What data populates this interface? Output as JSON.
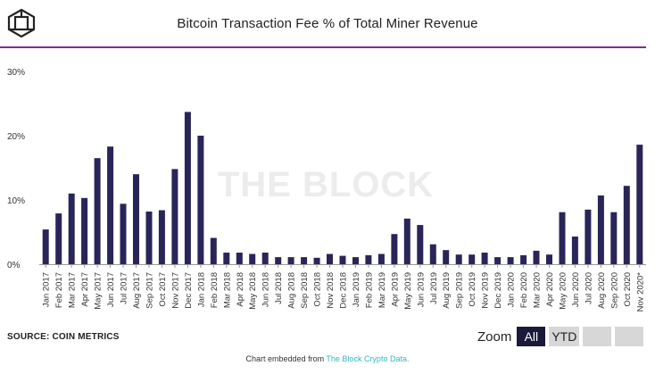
{
  "header": {
    "title": "Bitcoin Transaction Fee % of Total Miner Revenue",
    "logo_icon": "the-block-cube-icon",
    "accent_color": "#7e2d8f"
  },
  "watermark": "THE BLOCK",
  "chart_data": {
    "type": "bar",
    "title": "Bitcoin Transaction Fee % of Total Miner Revenue",
    "xlabel": "",
    "ylabel": "",
    "ylim": [
      0,
      30
    ],
    "y_ticks": [
      "0%",
      "10%",
      "20%",
      "30%"
    ],
    "grid": false,
    "bar_color": "#2a2558",
    "categories": [
      "Jan 2017",
      "Feb 2017",
      "Mar 2017",
      "Apr 2017",
      "May 2017",
      "Jun 2017",
      "Jul 2017",
      "Aug 2017",
      "Sep 2017",
      "Oct 2017",
      "Nov 2017",
      "Dec 2017",
      "Jan 2018",
      "Feb 2018",
      "Mar 2018",
      "Apr 2018",
      "May 2018",
      "Jun 2018",
      "Jul 2018",
      "Aug 2018",
      "Sep 2018",
      "Oct 2018",
      "Nov 2018",
      "Dec 2018",
      "Jan 2019",
      "Feb 2019",
      "Mar 2019",
      "Apr 2019",
      "May 2019",
      "Jun 2019",
      "Jul 2019",
      "Aug 2019",
      "Sep 2019",
      "Oct 2019",
      "Nov 2019",
      "Dec 2019",
      "Jan 2020",
      "Feb 2020",
      "Mar 2020",
      "Apr 2020",
      "May 2020",
      "Jun 2020",
      "Jul 2020",
      "Aug 2020",
      "Sep 2020",
      "Oct 2020",
      "Nov 2020*"
    ],
    "values": [
      5.4,
      7.9,
      11.0,
      10.3,
      16.5,
      18.3,
      9.4,
      14.0,
      8.2,
      8.4,
      14.8,
      23.7,
      20.0,
      4.1,
      1.8,
      1.8,
      1.6,
      1.8,
      1.1,
      1.1,
      1.1,
      1.0,
      1.6,
      1.3,
      1.1,
      1.4,
      1.6,
      4.7,
      7.1,
      6.1,
      3.1,
      2.2,
      1.5,
      1.5,
      1.8,
      1.1,
      1.1,
      1.4,
      2.1,
      1.5,
      8.1,
      4.3,
      8.5,
      10.7,
      8.1,
      12.2,
      18.6
    ]
  },
  "footer": {
    "source": "SOURCE: COIN METRICS",
    "zoom_label": "Zoom",
    "zoom_all": "All",
    "zoom_ytd": "YTD",
    "embed_text": "Chart embedded from ",
    "embed_link": "The Block Crypto Data."
  }
}
